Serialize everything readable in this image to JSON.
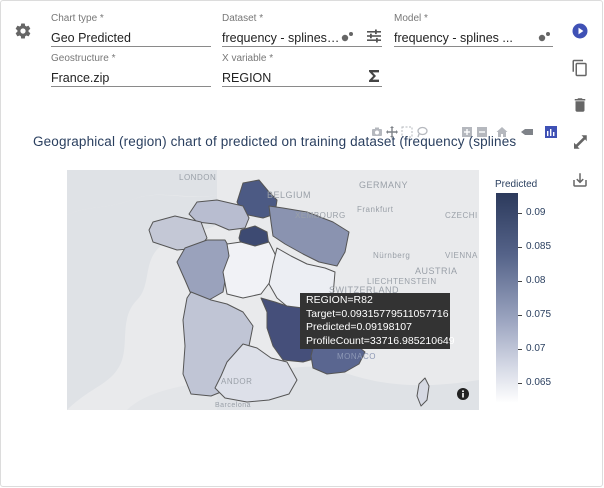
{
  "form": {
    "chart_type": {
      "label": "Chart type *",
      "value": "Geo Predicted"
    },
    "dataset": {
      "label": "Dataset *",
      "value": "frequency - splines ..."
    },
    "model": {
      "label": "Model *",
      "value": "frequency - splines ..."
    },
    "geostructure": {
      "label": "Geostructure *",
      "value": "France.zip"
    },
    "x_variable": {
      "label": "X variable *",
      "value": "REGION"
    }
  },
  "chart": {
    "title": "Geographical (region) chart of predicted on training dataset (frequency (splines",
    "colorbar_title": "Predicted",
    "colorbar_ticks": [
      "0.09",
      "0.085",
      "0.08",
      "0.075",
      "0.07",
      "0.065"
    ],
    "map_labels": {
      "london": "LONDON",
      "belgium": "BELGIUM",
      "germany": "GERMANY",
      "luxembourg": "XEMBOURG",
      "frankfurt": "Frankfurt",
      "czech": "CZECHI",
      "nurnberg": "Nürnberg",
      "vienna": "VIENNA",
      "austria": "AUSTRIA",
      "liechtenstein": "LIECHTENSTEIN",
      "switzerland": "SWITZERLAND",
      "monaco": "MONACO",
      "andorra": "ANDOR",
      "barcelona": "Barcelona"
    },
    "tooltip": {
      "region": "REGION=R82",
      "target": "Target=0.09315779511057716",
      "predicted": "Predicted=0.09198107",
      "profile_count": "ProfileCount=33716.985210649"
    }
  },
  "chart_data": {
    "type": "heatmap",
    "title": "Geographical (region) chart of predicted on training dataset (frequency (splines",
    "colorbar": {
      "title": "Predicted",
      "range": [
        0.062,
        0.093
      ],
      "ticks": [
        0.09,
        0.085,
        0.08,
        0.075,
        0.07,
        0.065
      ]
    },
    "hover": {
      "REGION": "R82",
      "Target": 0.09315779511057716,
      "Predicted": 0.09198107,
      "ProfileCount": 33716.985210649
    }
  },
  "colors": {
    "accent": "#3f51b5",
    "icon_gray": "#666666",
    "text_title": "#2a3f5f"
  },
  "icons": {
    "settings": "gear-icon",
    "run": "play-circle-icon",
    "copy": "copy-icon",
    "delete": "trash-icon",
    "expand": "expand-icon",
    "download": "download-icon"
  }
}
